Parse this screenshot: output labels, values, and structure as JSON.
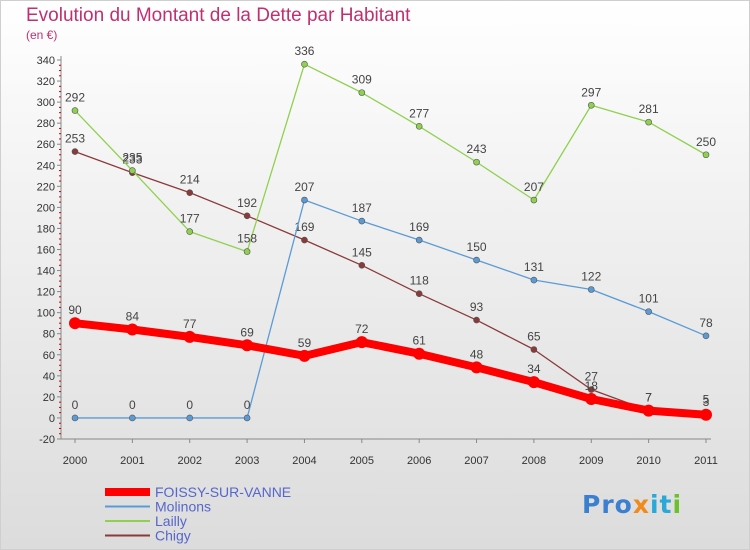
{
  "title": "Evolution du Montant de la Dette par Habitant",
  "subtitle": "(en €)",
  "logo": {
    "p1": "Pro",
    "p2": "x",
    "p3": "it",
    "p4": "i"
  },
  "chart_data": {
    "type": "line",
    "x": [
      "2000",
      "2001",
      "2002",
      "2003",
      "2004",
      "2005",
      "2006",
      "2007",
      "2008",
      "2009",
      "2010",
      "2011"
    ],
    "ylim": [
      -20,
      340
    ],
    "yticks": [
      -20,
      0,
      20,
      40,
      60,
      80,
      100,
      120,
      140,
      160,
      180,
      200,
      220,
      240,
      260,
      280,
      300,
      320,
      340
    ],
    "grid": false,
    "legend_position": "bottom-left",
    "series": [
      {
        "name": "FOISSY-SUR-VANNE",
        "color": "#ff0000",
        "values": [
          90,
          84,
          77,
          69,
          59,
          72,
          61,
          48,
          34,
          18,
          7,
          3
        ]
      },
      {
        "name": "Molinons",
        "color": "#5b9bd5",
        "values": [
          0,
          0,
          0,
          0,
          207,
          187,
          169,
          150,
          131,
          122,
          101,
          78
        ]
      },
      {
        "name": "Lailly",
        "color": "#8fd14f",
        "values": [
          292,
          235,
          177,
          158,
          336,
          309,
          277,
          243,
          207,
          297,
          281,
          250
        ]
      },
      {
        "name": "Chigy",
        "color": "#8b3a3a",
        "values": [
          253,
          233,
          214,
          192,
          169,
          145,
          118,
          93,
          65,
          27,
          7,
          5
        ]
      }
    ]
  }
}
